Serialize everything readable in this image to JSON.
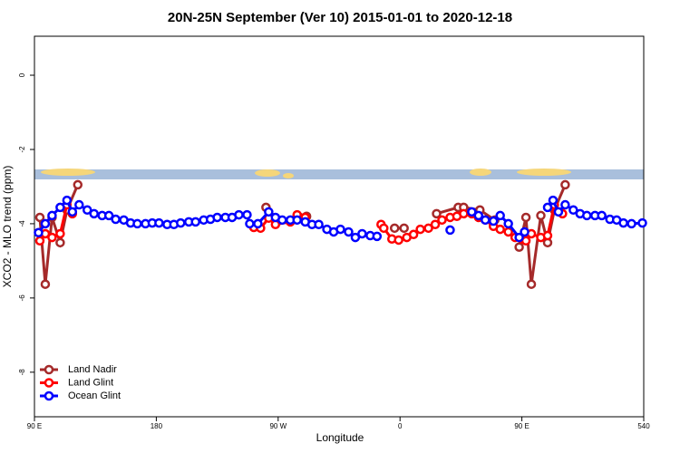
{
  "chart_data": {
    "type": "line",
    "title": "20N-25N September (Ver 10)   2015-01-01 to 2020-12-18",
    "x_label": "Longitude",
    "y_label": "XCO2 - MLO trend (ppm)",
    "xlim": [
      90,
      540
    ],
    "ylim": [
      -9.2,
      1.05
    ],
    "xticks": [
      {
        "value": 90,
        "label": "90 E"
      },
      180,
      {
        "value": 270,
        "label": "90 W"
      },
      {
        "value": 360,
        "label": "0"
      },
      {
        "value": 450,
        "label": "90 E"
      },
      540
    ],
    "yticks": [
      0,
      -2,
      -4,
      -6,
      -8
    ],
    "legend": "bottom-left",
    "series": [
      {
        "name": "Land Nadir",
        "color": "#a52a2a",
        "x": [
          94,
          98,
          103,
          109,
          114,
          122,
          null,
          261,
          265,
          null,
          286,
          291,
          null,
          356,
          363,
          null,
          387,
          403,
          407,
          419,
          430,
          null,
          448,
          453,
          457,
          464,
          469,
          474,
          482
        ],
        "values": [
          -3.83,
          -5.63,
          -3.83,
          -4.51,
          -3.63,
          -2.95,
          null,
          -3.56,
          -3.83,
          null,
          -3.83,
          -3.8,
          null,
          -4.12,
          -4.12,
          null,
          -3.73,
          -3.56,
          -3.56,
          -3.63,
          -3.9,
          null,
          -4.63,
          -3.83,
          -5.63,
          -3.78,
          -4.51,
          -3.63,
          -2.95
        ]
      },
      {
        "name": "Land Glint",
        "color": "#ff0000",
        "x": [
          94,
          98,
          103,
          109,
          114,
          118,
          null,
          252,
          257,
          263,
          268,
          279,
          284,
          290,
          null,
          346,
          348,
          354,
          359,
          365,
          370,
          375,
          381,
          386,
          391,
          397,
          402,
          407,
          413,
          418,
          423,
          429,
          434,
          440,
          445,
          450,
          453,
          457,
          464,
          469,
          474,
          480
        ],
        "values": [
          -4.46,
          -4.27,
          -4.37,
          -4.27,
          -3.49,
          -3.73,
          null,
          -4.1,
          -4.12,
          -3.85,
          -4.02,
          -3.95,
          -3.76,
          -3.83,
          null,
          -4.02,
          -4.12,
          -4.41,
          -4.44,
          -4.37,
          -4.29,
          -4.15,
          -4.12,
          -4.02,
          -3.9,
          -3.83,
          -3.8,
          -3.73,
          -3.73,
          -3.83,
          -3.9,
          -4.07,
          -4.15,
          -4.22,
          -4.37,
          -4.41,
          -4.46,
          -4.27,
          -4.37,
          -4.32,
          -3.49,
          -3.73
        ]
      },
      {
        "name": "Ocean Glint",
        "color": "#0000ff",
        "x": [
          93,
          98,
          103,
          109,
          114,
          118,
          123,
          129,
          134,
          140,
          145,
          150,
          156,
          161,
          166,
          172,
          177,
          182,
          188,
          193,
          198,
          204,
          209,
          215,
          220,
          225,
          231,
          236,
          241,
          247,
          249,
          255,
          263,
          268,
          273,
          279,
          284,
          290,
          295,
          300,
          306,
          311,
          316,
          322,
          327,
          332,
          338,
          343,
          null,
          397,
          null,
          413,
          418,
          423,
          429,
          434,
          440,
          448,
          452,
          null,
          469,
          473,
          477,
          482,
          488,
          493,
          498,
          504,
          509,
          515,
          520,
          525,
          531,
          539
        ],
        "values": [
          -4.24,
          -4.0,
          -3.78,
          -3.56,
          -3.37,
          -3.68,
          -3.49,
          -3.63,
          -3.73,
          -3.78,
          -3.78,
          -3.88,
          -3.9,
          -3.98,
          -4.0,
          -4.0,
          -3.98,
          -3.98,
          -4.02,
          -4.02,
          -3.98,
          -3.95,
          -3.95,
          -3.9,
          -3.88,
          -3.83,
          -3.83,
          -3.83,
          -3.76,
          -3.76,
          -4.0,
          -4.0,
          -3.68,
          -3.83,
          -3.9,
          -3.9,
          -3.9,
          -3.95,
          -4.02,
          -4.02,
          -4.15,
          -4.22,
          -4.15,
          -4.22,
          -4.37,
          -4.27,
          -4.32,
          -4.34,
          null,
          -4.17,
          null,
          -3.68,
          -3.78,
          -3.9,
          -3.93,
          -3.78,
          -4.0,
          -4.37,
          -4.22,
          null,
          -3.56,
          -3.37,
          -3.68,
          -3.49,
          -3.63,
          -3.73,
          -3.78,
          -3.78,
          -3.78,
          -3.88,
          -3.9,
          -3.98,
          -4.0,
          -3.98
        ]
      }
    ]
  }
}
